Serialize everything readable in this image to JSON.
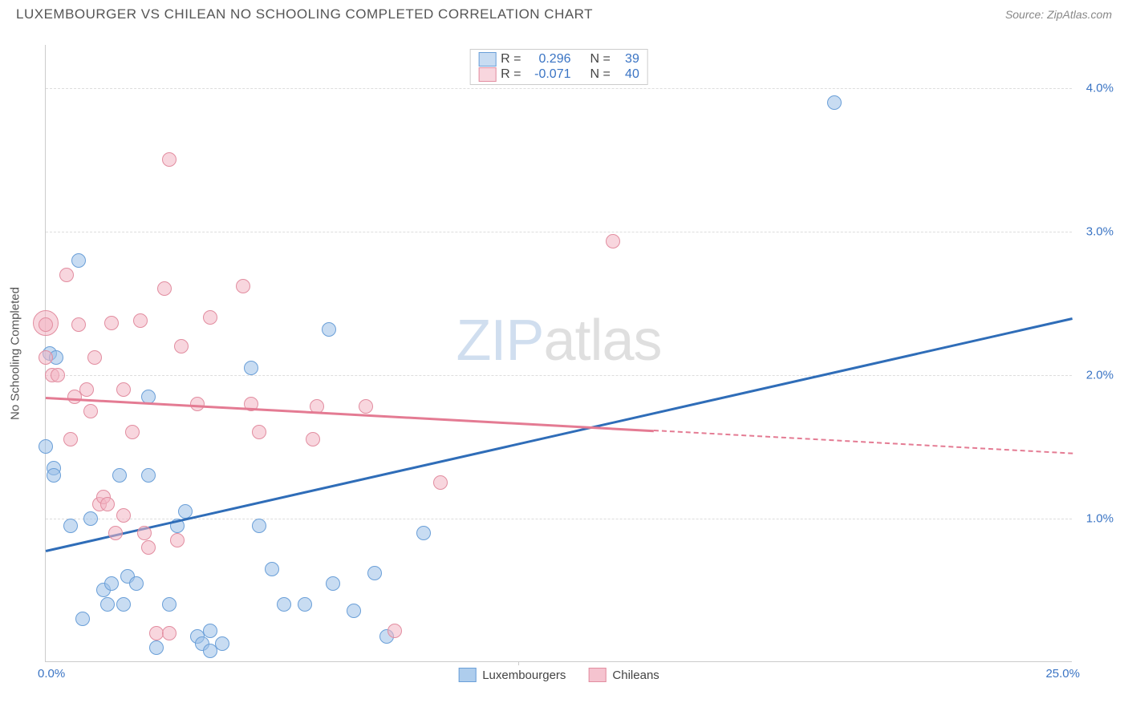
{
  "header": {
    "title": "LUXEMBOURGER VS CHILEAN NO SCHOOLING COMPLETED CORRELATION CHART",
    "source": "Source: ZipAtlas.com"
  },
  "watermark": {
    "zip": "ZIP",
    "atlas": "atlas"
  },
  "chart": {
    "type": "scatter",
    "background_color": "#ffffff",
    "grid_color": "#dddddd",
    "axis_color": "#cccccc",
    "value_color": "#3a74c4",
    "label_color": "#555555",
    "yaxis_label": "No Schooling Completed",
    "xlim": [
      0,
      25
    ],
    "ylim": [
      0,
      4.3
    ],
    "xticks": [
      {
        "value": 0,
        "label": "0.0%"
      },
      {
        "value": 25,
        "label": "25.0%"
      }
    ],
    "xticks_minor": [
      5,
      10,
      15,
      20
    ],
    "xvtick": 11.5,
    "yticks": [
      {
        "value": 1.0,
        "label": "1.0%"
      },
      {
        "value": 2.0,
        "label": "2.0%"
      },
      {
        "value": 3.0,
        "label": "3.0%"
      },
      {
        "value": 4.0,
        "label": "4.0%"
      }
    ],
    "series": [
      {
        "name": "Luxembourgers",
        "fill_color": "rgba(154,192,232,0.55)",
        "stroke_color": "#6a9fd8",
        "line_color": "#2f6db8",
        "point_radius": 9,
        "stats": {
          "r_label": "R =",
          "r": "0.296",
          "n_label": "N =",
          "n": "39"
        },
        "trend": {
          "x1": 0,
          "y1": 0.78,
          "x2": 25,
          "y2": 2.4
        },
        "points": [
          [
            0.0,
            1.5
          ],
          [
            0.1,
            2.15
          ],
          [
            0.2,
            1.35
          ],
          [
            0.2,
            1.3
          ],
          [
            0.25,
            2.12
          ],
          [
            0.6,
            0.95
          ],
          [
            0.8,
            2.8
          ],
          [
            0.9,
            0.3
          ],
          [
            1.1,
            1.0
          ],
          [
            1.4,
            0.5
          ],
          [
            1.5,
            0.4
          ],
          [
            1.6,
            0.55
          ],
          [
            1.8,
            1.3
          ],
          [
            1.9,
            0.4
          ],
          [
            2.0,
            0.6
          ],
          [
            2.2,
            0.55
          ],
          [
            2.5,
            1.85
          ],
          [
            2.5,
            1.3
          ],
          [
            2.7,
            0.1
          ],
          [
            3.0,
            0.4
          ],
          [
            3.2,
            0.95
          ],
          [
            3.4,
            1.05
          ],
          [
            3.7,
            0.18
          ],
          [
            3.8,
            0.13
          ],
          [
            4.0,
            0.22
          ],
          [
            4.0,
            0.08
          ],
          [
            4.3,
            0.13
          ],
          [
            5.0,
            2.05
          ],
          [
            5.2,
            0.95
          ],
          [
            5.5,
            0.65
          ],
          [
            5.8,
            0.4
          ],
          [
            6.3,
            0.4
          ],
          [
            6.9,
            2.32
          ],
          [
            7.0,
            0.55
          ],
          [
            7.5,
            0.36
          ],
          [
            8.0,
            0.62
          ],
          [
            8.3,
            0.18
          ],
          [
            9.2,
            0.9
          ],
          [
            19.2,
            3.9
          ]
        ]
      },
      {
        "name": "Chileans",
        "fill_color": "rgba(243,180,195,0.55)",
        "stroke_color": "#e28da0",
        "line_color": "#e47b93",
        "point_radius": 9,
        "stats": {
          "r_label": "R =",
          "r": "-0.071",
          "n_label": "N =",
          "n": "40"
        },
        "trend_solid": {
          "x1": 0,
          "y1": 1.85,
          "x2": 14.8,
          "y2": 1.62
        },
        "trend_dash": {
          "x1": 14.8,
          "y1": 1.62,
          "x2": 25,
          "y2": 1.46
        },
        "points": [
          [
            0.0,
            2.12
          ],
          [
            0.0,
            2.35
          ],
          [
            0.15,
            2.0
          ],
          [
            0.3,
            2.0
          ],
          [
            0.5,
            2.7
          ],
          [
            0.6,
            1.55
          ],
          [
            0.7,
            1.85
          ],
          [
            0.8,
            2.35
          ],
          [
            1.0,
            1.9
          ],
          [
            1.1,
            1.75
          ],
          [
            1.2,
            2.12
          ],
          [
            1.3,
            1.1
          ],
          [
            1.4,
            1.15
          ],
          [
            1.5,
            1.1
          ],
          [
            1.6,
            2.36
          ],
          [
            1.7,
            0.9
          ],
          [
            1.9,
            1.02
          ],
          [
            1.9,
            1.9
          ],
          [
            2.1,
            1.6
          ],
          [
            2.3,
            2.38
          ],
          [
            2.4,
            0.9
          ],
          [
            2.5,
            0.8
          ],
          [
            2.7,
            0.2
          ],
          [
            2.9,
            2.6
          ],
          [
            3.0,
            0.2
          ],
          [
            3.0,
            3.5
          ],
          [
            3.2,
            0.85
          ],
          [
            3.3,
            2.2
          ],
          [
            3.7,
            1.8
          ],
          [
            4.0,
            2.4
          ],
          [
            4.8,
            2.62
          ],
          [
            5.0,
            1.8
          ],
          [
            5.2,
            1.6
          ],
          [
            6.5,
            1.55
          ],
          [
            6.6,
            1.78
          ],
          [
            7.8,
            1.78
          ],
          [
            8.5,
            0.22
          ],
          [
            9.6,
            1.25
          ],
          [
            13.8,
            2.93
          ]
        ],
        "big_point": {
          "x": 0.0,
          "y": 2.36,
          "r": 16
        }
      }
    ],
    "legend_bottom": [
      {
        "label": "Luxembourgers",
        "fill": "rgba(154,192,232,0.8)",
        "stroke": "#6a9fd8"
      },
      {
        "label": "Chileans",
        "fill": "rgba(243,180,195,0.8)",
        "stroke": "#e28da0"
      }
    ]
  }
}
